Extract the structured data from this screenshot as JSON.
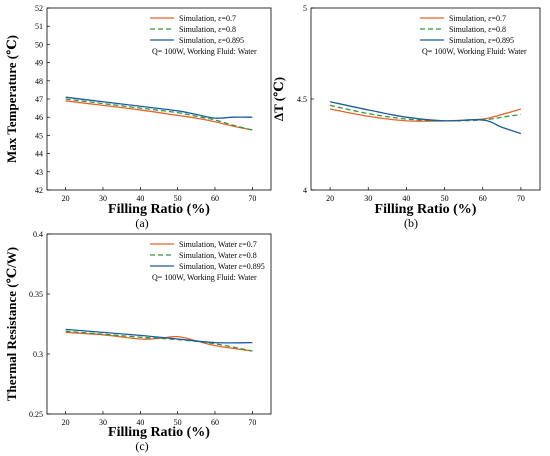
{
  "chart_data": [
    {
      "id": "a",
      "type": "line",
      "caption": "(a)",
      "xlabel": "Filling Ratio (%)",
      "ylabel": "Max Temperature (℃)",
      "xlim": [
        15,
        75
      ],
      "ylim": [
        42,
        52
      ],
      "xticks": [
        20,
        30,
        40,
        50,
        60,
        70
      ],
      "yticks": [
        42,
        43,
        44,
        45,
        46,
        47,
        48,
        49,
        50,
        51,
        52
      ],
      "ytick_labels": [
        "42",
        "43",
        "44",
        "45",
        "46",
        "47",
        "48",
        "49",
        "50",
        "51",
        "52"
      ],
      "legend_note": "Q= 100W,  Working Fluid: Water",
      "series": [
        {
          "name": "Simulation, ε=0.7",
          "color": "#e8632a",
          "dash": "solid",
          "x": [
            20,
            30,
            40,
            50,
            55,
            60,
            65,
            70
          ],
          "y": [
            46.9,
            46.65,
            46.4,
            46.1,
            45.95,
            45.75,
            45.5,
            45.3
          ]
        },
        {
          "name": "Simulation, ε=0.8",
          "color": "#2a9d3a",
          "dash": "dashed",
          "x": [
            20,
            30,
            40,
            50,
            55,
            60,
            65,
            70
          ],
          "y": [
            47.0,
            46.75,
            46.5,
            46.25,
            46.05,
            45.85,
            45.55,
            45.3
          ]
        },
        {
          "name": "Simulation, ε=0.895",
          "color": "#1f5b9e",
          "dash": "solid",
          "x": [
            20,
            30,
            40,
            50,
            55,
            60,
            65,
            70
          ],
          "y": [
            47.1,
            46.85,
            46.6,
            46.35,
            46.15,
            45.95,
            46.0,
            46.0
          ]
        }
      ]
    },
    {
      "id": "b",
      "type": "line",
      "caption": "(b)",
      "xlabel": "Filling Ratio (%)",
      "ylabel": "ΔT (℃)",
      "xlim": [
        15,
        75
      ],
      "ylim": [
        4,
        5
      ],
      "xticks": [
        20,
        30,
        40,
        50,
        60,
        70
      ],
      "yticks": [
        4,
        4.5,
        5
      ],
      "ytick_labels": [
        "4",
        "4.5",
        "5"
      ],
      "legend_note": "Q= 100W,  Working Fluid: Water",
      "series": [
        {
          "name": "Simulation, ε=0.7",
          "color": "#e8632a",
          "dash": "solid",
          "x": [
            20,
            30,
            40,
            50,
            60,
            65,
            70
          ],
          "y": [
            4.445,
            4.405,
            4.38,
            4.38,
            4.39,
            4.415,
            4.445
          ]
        },
        {
          "name": "Simulation, ε=0.8",
          "color": "#2a9d3a",
          "dash": "dashed",
          "x": [
            20,
            30,
            40,
            50,
            60,
            65,
            70
          ],
          "y": [
            4.465,
            4.42,
            4.39,
            4.38,
            4.385,
            4.4,
            4.415
          ]
        },
        {
          "name": "Simulation, ε=0.895",
          "color": "#1f5b9e",
          "dash": "solid",
          "x": [
            20,
            30,
            40,
            50,
            60,
            65,
            70
          ],
          "y": [
            4.485,
            4.44,
            4.4,
            4.38,
            4.385,
            4.345,
            4.31
          ]
        }
      ]
    },
    {
      "id": "c",
      "type": "line",
      "caption": "(c)",
      "xlabel": "Filling Ratio (%)",
      "ylabel": "Thermal Resistance (℃/W)",
      "xlim": [
        15,
        75
      ],
      "ylim": [
        0.25,
        0.4
      ],
      "xticks": [
        20,
        30,
        40,
        50,
        60,
        70
      ],
      "yticks": [
        0.25,
        0.3,
        0.35,
        0.4
      ],
      "ytick_labels": [
        "0.25",
        "0.3",
        "0.35",
        "0.4"
      ],
      "legend_note": "Q= 100W,  Working Fluid: Water",
      "series": [
        {
          "name": "Simulation, Water ε=0.7",
          "color": "#e8632a",
          "dash": "solid",
          "x": [
            20,
            30,
            40,
            45,
            50,
            55,
            60,
            70
          ],
          "y": [
            0.318,
            0.316,
            0.3125,
            0.313,
            0.3145,
            0.311,
            0.307,
            0.3025
          ]
        },
        {
          "name": "Simulation, Water ε=0.8",
          "color": "#2a9d3a",
          "dash": "dashed",
          "x": [
            20,
            30,
            40,
            50,
            60,
            70
          ],
          "y": [
            0.319,
            0.3165,
            0.314,
            0.312,
            0.3085,
            0.3025
          ]
        },
        {
          "name": "Simulation, Water ε=0.895",
          "color": "#1f5b9e",
          "dash": "solid",
          "x": [
            20,
            30,
            40,
            50,
            60,
            70
          ],
          "y": [
            0.3205,
            0.318,
            0.3155,
            0.3125,
            0.3095,
            0.3095
          ]
        }
      ]
    }
  ]
}
